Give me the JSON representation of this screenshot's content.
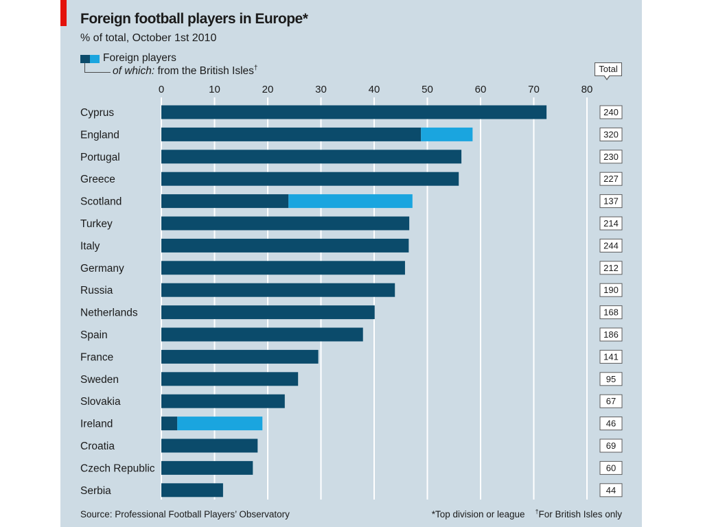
{
  "colors": {
    "brand_red": "#e3120b",
    "background": "#cddbe4",
    "gridline": "#ffffff",
    "total_box_fill": "#ffffff",
    "total_box_border": "#5a5a5a"
  },
  "chart_data": {
    "type": "bar",
    "orientation": "horizontal",
    "title": "Foreign football players in Europe*",
    "subtitle": "% of total, October 1st 2010",
    "xlim": [
      0,
      80
    ],
    "xticks": [
      0,
      10,
      20,
      30,
      40,
      50,
      60,
      70,
      80
    ],
    "grid": true,
    "legend": "top-left",
    "categories": [
      "Cyprus",
      "England",
      "Portugal",
      "Greece",
      "Scotland",
      "Turkey",
      "Italy",
      "Germany",
      "Russia",
      "Netherlands",
      "Spain",
      "France",
      "Sweden",
      "Slovakia",
      "Ireland",
      "Croatia",
      "Czech Republic",
      "Serbia"
    ],
    "series": [
      {
        "name": "Foreign players",
        "color": "#0b4b6b",
        "values": [
          72.4,
          58.5,
          56.4,
          55.9,
          47.2,
          46.6,
          46.5,
          45.8,
          43.9,
          40.1,
          37.9,
          29.5,
          25.7,
          23.2,
          19.0,
          18.1,
          17.2,
          11.6
        ]
      },
      {
        "name": "from the British Isles",
        "color": "#1aa5df",
        "values": [
          null,
          9.7,
          null,
          null,
          23.3,
          null,
          null,
          null,
          null,
          null,
          null,
          null,
          null,
          null,
          16.0,
          null,
          null,
          null
        ]
      }
    ],
    "legend_prefix": "of which:",
    "legend_mark": "†",
    "totals_label": "Total",
    "totals": [
      240,
      320,
      230,
      227,
      137,
      214,
      244,
      212,
      190,
      168,
      186,
      141,
      95,
      67,
      46,
      69,
      60,
      44
    ]
  },
  "footer": {
    "source": "Source: Professional Football Players’ Observatory",
    "note_1": "*Top division or league",
    "note_2_mark": "†",
    "note_2": "For British Isles only"
  }
}
